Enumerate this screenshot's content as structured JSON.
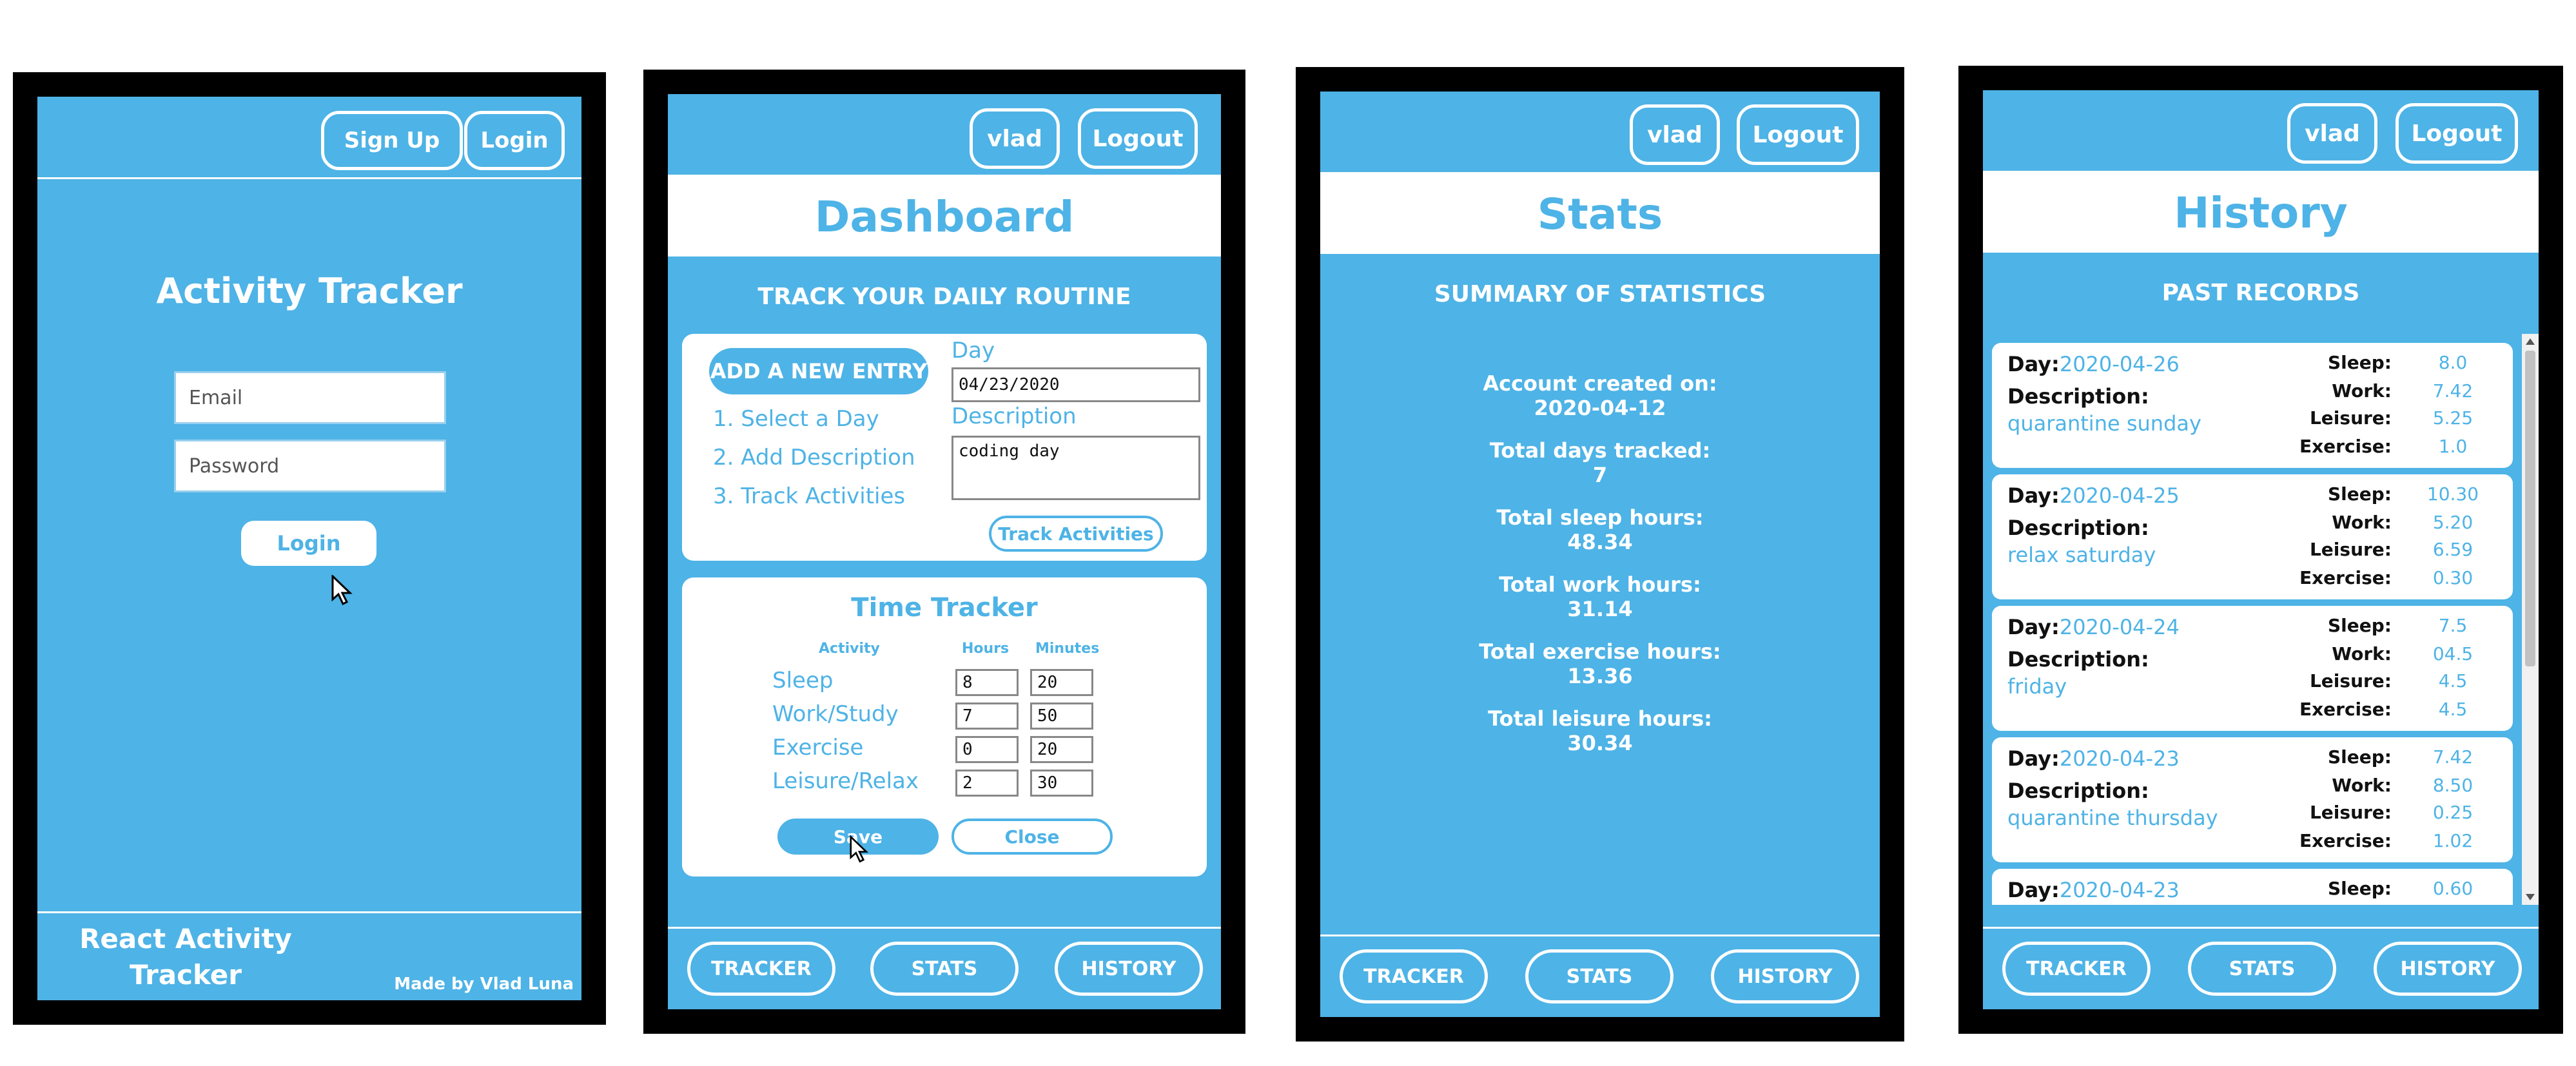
{
  "colors": {
    "accent": "#4eb3e6",
    "frame": "#000000",
    "white": "#ffffff",
    "dark": "#111111"
  },
  "login": {
    "signup_label": "Sign Up",
    "login_nav_label": "Login",
    "title": "Activity Tracker",
    "email_placeholder": "Email",
    "password_placeholder": "Password",
    "login_button": "Login",
    "footer_title_line1": "React Activity",
    "footer_title_line2": "Tracker",
    "footer_credit": "Made by Vlad Luna"
  },
  "common": {
    "user_label": "vlad",
    "logout_label": "Logout",
    "nav": {
      "tracker": "TRACKER",
      "stats": "STATS",
      "history": "HISTORY"
    }
  },
  "dashboard": {
    "title": "Dashboard",
    "subtitle": "TRACK YOUR DAILY ROUTINE",
    "add_entry_label": "ADD A NEW ENTRY",
    "steps": [
      "1. Select a Day",
      "2. Add Description",
      "3. Track Activities"
    ],
    "day_label": "Day",
    "day_value": "04/23/2020",
    "description_label": "Description",
    "description_value": "coding day",
    "track_button": "Track Activities",
    "time_tracker": {
      "title": "Time Tracker",
      "col_activity": "Activity",
      "col_hours": "Hours",
      "col_minutes": "Minutes",
      "rows": [
        {
          "activity": "Sleep",
          "hours": "8",
          "minutes": "20"
        },
        {
          "activity": "Work/Study",
          "hours": "7",
          "minutes": "50"
        },
        {
          "activity": "Exercise",
          "hours": "0",
          "minutes": "20"
        },
        {
          "activity": "Leisure/Relax",
          "hours": "2",
          "minutes": "30"
        }
      ],
      "save_label": "Save",
      "close_label": "Close"
    }
  },
  "stats": {
    "title": "Stats",
    "subtitle": "SUMMARY OF STATISTICS",
    "items": [
      {
        "label": "Account created on:",
        "value": "2020-04-12"
      },
      {
        "label": "Total days tracked:",
        "value": "7"
      },
      {
        "label": "Total sleep hours:",
        "value": "48.34"
      },
      {
        "label": "Total work hours:",
        "value": "31.14"
      },
      {
        "label": "Total exercise hours:",
        "value": "13.36"
      },
      {
        "label": "Total leisure hours:",
        "value": "30.34"
      }
    ]
  },
  "history": {
    "title": "History",
    "subtitle": "PAST RECORDS",
    "day_prefix": "Day:",
    "description_label": "Description:",
    "sleep_label": "Sleep:",
    "work_label": "Work:",
    "leisure_label": "Leisure:",
    "exercise_label": "Exercise:",
    "records": [
      {
        "day": "2020-04-26",
        "description": "quarantine sunday",
        "sleep": "8.0",
        "work": "7.42",
        "leisure": "5.25",
        "exercise": "1.0"
      },
      {
        "day": "2020-04-25",
        "description": "relax saturday",
        "sleep": "10.30",
        "work": "5.20",
        "leisure": "6.59",
        "exercise": "0.30"
      },
      {
        "day": "2020-04-24",
        "description": "friday",
        "sleep": "7.5",
        "work": "04.5",
        "leisure": "4.5",
        "exercise": "4.5"
      },
      {
        "day": "2020-04-23",
        "description": "quarantine thursday",
        "sleep": "7.42",
        "work": "8.50",
        "leisure": "0.25",
        "exercise": "1.02"
      },
      {
        "day": "2020-04-23",
        "sleep": "0.60"
      }
    ]
  }
}
